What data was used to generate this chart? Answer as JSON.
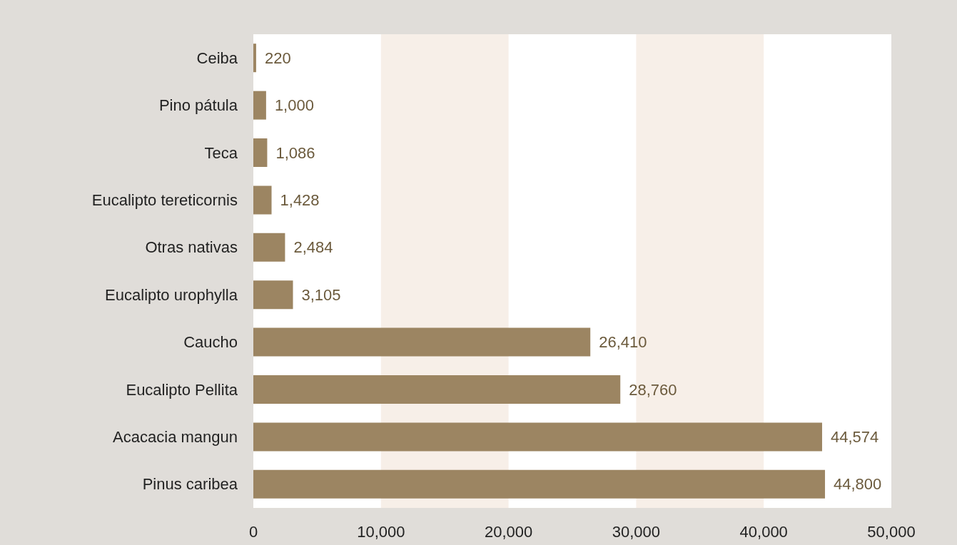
{
  "chart_data": {
    "type": "bar",
    "orientation": "horizontal",
    "categories": [
      "Ceiba",
      "Pino pátula",
      "Teca",
      "Eucalipto tereticornis",
      "Otras nativas",
      "Eucalipto urophylla",
      "Caucho",
      "Eucalipto Pellita",
      "Acacacia mangun",
      "Pinus caribea"
    ],
    "values": [
      220,
      1000,
      1086,
      1428,
      2484,
      3105,
      26410,
      28760,
      44574,
      44800
    ],
    "value_labels": [
      "220",
      "1,000",
      "1,086",
      "1,428",
      "2,484",
      "3,105",
      "26,410",
      "28,760",
      "44,574",
      "44,800"
    ],
    "color": "#9c8562",
    "xlim": [
      0,
      50000
    ],
    "xticks": [
      0,
      {
        "value": 10000,
        "label": "10,000"
      },
      {
        "value": 20000,
        "label": "20,000"
      },
      {
        "value": 30000,
        "label": "30,000"
      },
      {
        "value": 40000,
        "label": "40,000"
      },
      {
        "value": 50000,
        "label": "50,000"
      }
    ],
    "bands": [
      {
        "axis": "x",
        "from": 10000,
        "to": 20000,
        "color": "#f7efe8"
      },
      {
        "axis": "x",
        "from": 30000,
        "to": 40000,
        "color": "#f7efe8"
      }
    ],
    "grid": false
  }
}
